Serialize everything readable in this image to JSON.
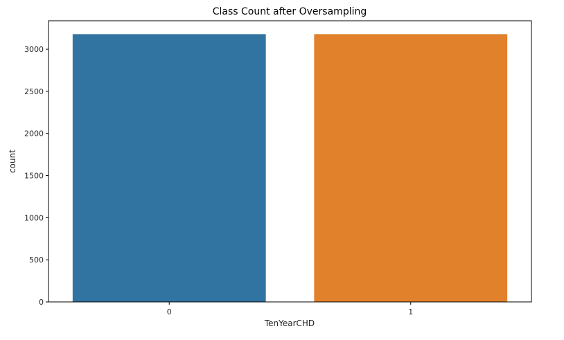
{
  "chart_data": {
    "type": "bar",
    "title": "Class Count after Oversampling",
    "xlabel": "TenYearCHD",
    "ylabel": "count",
    "categories": [
      "0",
      "1"
    ],
    "values": [
      3179,
      3179
    ],
    "colors": [
      "#3274a1",
      "#e1812c"
    ],
    "ylim": [
      0,
      3338
    ],
    "yticks": [
      0,
      500,
      1000,
      1500,
      2000,
      2500,
      3000
    ],
    "ytick_labels": [
      "0",
      "500",
      "1000",
      "1500",
      "2000",
      "2500",
      "3000"
    ],
    "grid": false,
    "legend": "none"
  }
}
